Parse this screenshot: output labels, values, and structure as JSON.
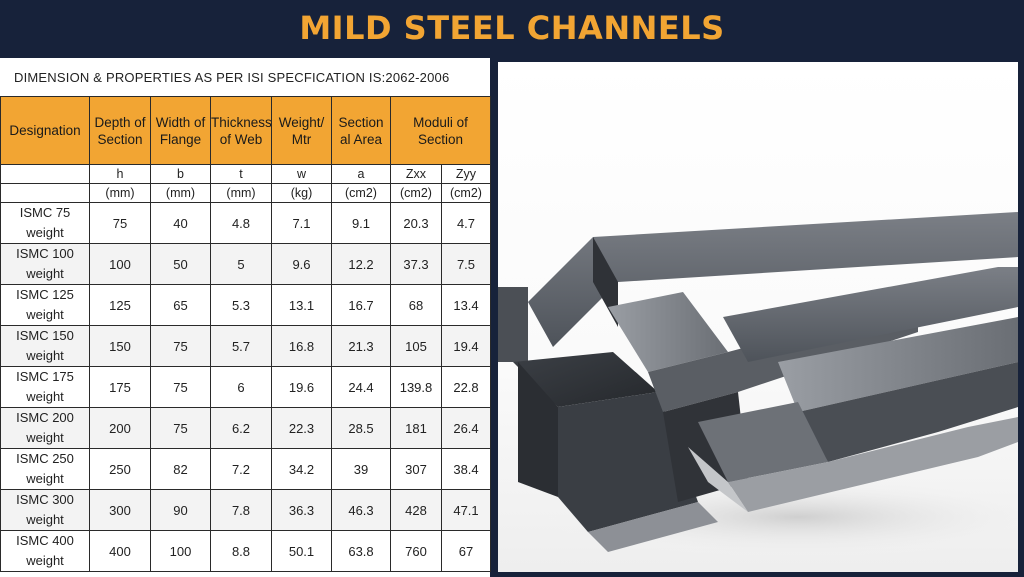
{
  "title": "MILD STEEL CHANNELS",
  "subtitle": "DIMENSION & PROPERTIES AS PER ISI SPECFICATION IS:2062-2006",
  "table": {
    "headers": {
      "designation": "Designation",
      "depth": "Depth of Section",
      "width": "Width of Flange",
      "thickness": "Thickness of Web",
      "weight": "Weight/ Mtr",
      "area": "Section al Area",
      "moduli": "Moduli of Section"
    },
    "symbols": [
      "h",
      "b",
      "t",
      "w",
      "a",
      "Zxx",
      "Zyy"
    ],
    "units": [
      "(mm)",
      "(mm)",
      "(mm)",
      "(kg)",
      "(cm2)",
      "(cm2)",
      "(cm2)"
    ],
    "rows": [
      {
        "designation": "ISMC 75 weight",
        "h": "75",
        "b": "40",
        "t": "4.8",
        "w": "7.1",
        "a": "9.1",
        "zxx": "20.3",
        "zyy": "4.7"
      },
      {
        "designation": "ISMC 100 weight",
        "h": "100",
        "b": "50",
        "t": "5",
        "w": "9.6",
        "a": "12.2",
        "zxx": "37.3",
        "zyy": "7.5"
      },
      {
        "designation": "ISMC 125 weight",
        "h": "125",
        "b": "65",
        "t": "5.3",
        "w": "13.1",
        "a": "16.7",
        "zxx": "68",
        "zyy": "13.4"
      },
      {
        "designation": "ISMC 150 weight",
        "h": "150",
        "b": "75",
        "t": "5.7",
        "w": "16.8",
        "a": "21.3",
        "zxx": "105",
        "zyy": "19.4"
      },
      {
        "designation": "ISMC 175 weight",
        "h": "175",
        "b": "75",
        "t": "6",
        "w": "19.6",
        "a": "24.4",
        "zxx": "139.8",
        "zyy": "22.8"
      },
      {
        "designation": "ISMC 200 weight",
        "h": "200",
        "b": "75",
        "t": "6.2",
        "w": "22.3",
        "a": "28.5",
        "zxx": "181",
        "zyy": "26.4"
      },
      {
        "designation": "ISMC 250 weight",
        "h": "250",
        "b": "82",
        "t": "7.2",
        "w": "34.2",
        "a": "39",
        "zxx": "307",
        "zyy": "38.4"
      },
      {
        "designation": "ISMC 300 weight",
        "h": "300",
        "b": "90",
        "t": "7.8",
        "w": "36.3",
        "a": "46.3",
        "zxx": "428",
        "zyy": "47.1"
      },
      {
        "designation": "ISMC 400 weight",
        "h": "400",
        "b": "100",
        "t": "8.8",
        "w": "50.1",
        "a": "63.8",
        "zxx": "760",
        "zyy": "67"
      }
    ]
  },
  "colors": {
    "background": "#17223a",
    "accent": "#f2a533"
  },
  "image": {
    "subject": "steel-channels-photo"
  }
}
